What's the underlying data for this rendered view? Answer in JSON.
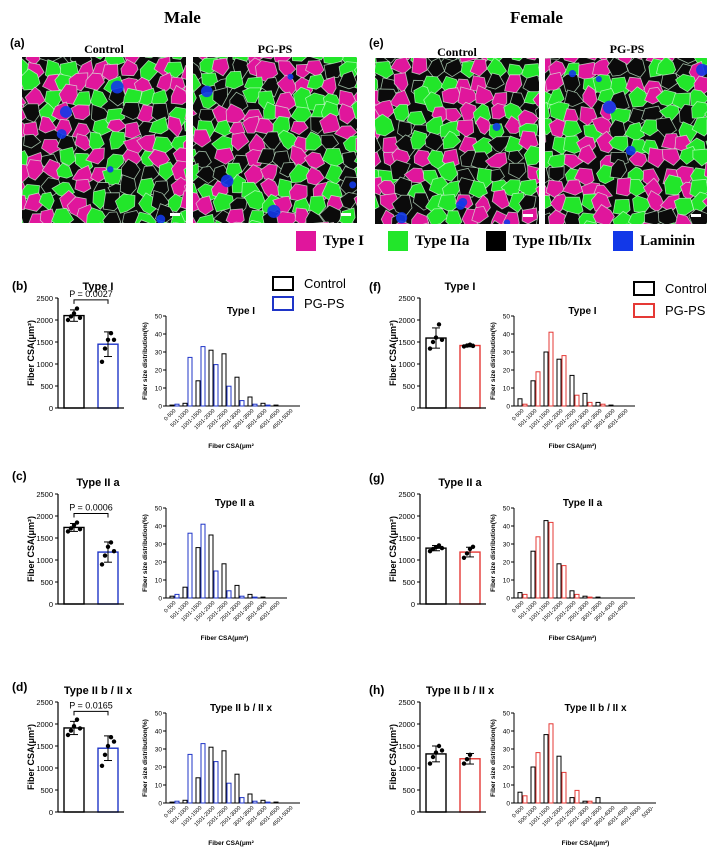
{
  "header": {
    "male": "Male",
    "female": "Female"
  },
  "panels": {
    "a": {
      "label": "(a)",
      "control": "Control",
      "pgps": "PG-PS"
    },
    "e": {
      "label": "(e)",
      "control": "Control",
      "pgps": "PG-PS"
    }
  },
  "fiber_legend": [
    {
      "name": "Type I",
      "color": "#e0169c"
    },
    {
      "name": "Type IIa",
      "color": "#22e62a"
    },
    {
      "name": "Type IIb/IIx",
      "color": "#000000"
    },
    {
      "name": "Laminin",
      "color": "#1238e8"
    }
  ],
  "group_legend": {
    "male": {
      "control": "Control",
      "pgps": "PG-PS",
      "pgps_color": "#1f35c7"
    },
    "female": {
      "control": "Control",
      "pgps": "PG-PS",
      "pgps_color": "#e53935"
    }
  },
  "chart_data": [
    {
      "id": "b",
      "label": "(b)",
      "type": "bar",
      "title": "Type I",
      "ylabel": "Fiber CSA(μm²)",
      "ylim": [
        0,
        2500
      ],
      "yticks": [
        0,
        500,
        1000,
        1500,
        2000,
        2500
      ],
      "categories": [
        "Control",
        "PG-PS"
      ],
      "values": [
        2100,
        1450
      ],
      "errors": [
        130,
        280
      ],
      "pvalue": "P = 0.0027",
      "pgps_color": "#1f35c7",
      "points": [
        [
          2000,
          2080,
          2150,
          2260,
          2050
        ],
        [
          1050,
          1350,
          1550,
          1700,
          1550
        ]
      ]
    },
    {
      "id": "b-hist",
      "type": "bar",
      "title": "Type I",
      "ylabel": "Fiber size distribution(%)",
      "xlabel": "Fiber CSA(μm²",
      "ylim": [
        0,
        50
      ],
      "yticks": [
        0,
        10,
        20,
        30,
        40,
        50
      ],
      "categories": [
        "0-500",
        "501-1000",
        "1001-1500",
        "1501-2000",
        "2001-2500",
        "2501-3000",
        "3001-3500",
        "3501-4000",
        "4001-4500",
        "4501-5000"
      ],
      "series": [
        {
          "name": "Control",
          "values": [
            0.5,
            1.5,
            14,
            31,
            29,
            16,
            5,
            1.5,
            0.5,
            0
          ]
        },
        {
          "name": "PG-PS",
          "values": [
            1,
            27,
            33,
            23,
            11,
            3,
            1,
            0.5,
            0,
            0
          ]
        }
      ],
      "pgps_color": "#1f35c7"
    },
    {
      "id": "c",
      "label": "(c)",
      "type": "bar",
      "title": "Type II a",
      "ylabel": "Fiber CSA(μm²)",
      "ylim": [
        0,
        2500
      ],
      "yticks": [
        0,
        500,
        1000,
        1500,
        2000,
        2500
      ],
      "categories": [
        "Control",
        "PG-PS"
      ],
      "values": [
        1740,
        1180
      ],
      "errors": [
        90,
        230
      ],
      "pvalue": "P = 0.0006",
      "pgps_color": "#1f35c7",
      "points": [
        [
          1650,
          1720,
          1790,
          1850,
          1700
        ],
        [
          900,
          1100,
          1300,
          1400,
          1200
        ]
      ]
    },
    {
      "id": "c-hist",
      "type": "bar",
      "title": "Type II a",
      "ylabel": "Fiber size distribution(%)",
      "xlabel": "Fiber CSA(μm²)",
      "ylim": [
        0,
        50
      ],
      "yticks": [
        0,
        10,
        20,
        30,
        40,
        50
      ],
      "categories": [
        "0-500",
        "501-1000",
        "1001-1500",
        "1501-2000",
        "2001-2500",
        "2501-3000",
        "3001-3500",
        "3501-4000",
        "4001-4500"
      ],
      "series": [
        {
          "name": "Control",
          "values": [
            1,
            6,
            28,
            35,
            19,
            7,
            2,
            0.5,
            0
          ]
        },
        {
          "name": "PG-PS",
          "values": [
            2,
            36,
            41,
            15,
            4,
            1,
            0.5,
            0,
            0
          ]
        }
      ],
      "pgps_color": "#1f35c7"
    },
    {
      "id": "d",
      "label": "(d)",
      "type": "bar",
      "title": "Type II b / II x",
      "ylabel": "Fiber CSA(μm²)",
      "ylim": [
        0,
        2500
      ],
      "yticks": [
        0,
        500,
        1000,
        1500,
        2000,
        2500
      ],
      "categories": [
        "Control",
        "PG-PS"
      ],
      "values": [
        1910,
        1450
      ],
      "errors": [
        150,
        280
      ],
      "pvalue": "P = 0.0165",
      "pgps_color": "#1f35c7",
      "points": [
        [
          1750,
          1850,
          1950,
          2100,
          1900
        ],
        [
          1050,
          1300,
          1500,
          1700,
          1600
        ]
      ]
    },
    {
      "id": "d-hist",
      "type": "bar",
      "title": "Type II b / II x",
      "ylabel": "Fiber size distribution(%)",
      "xlabel": "Fiber CSA(μm²",
      "ylim": [
        0,
        50
      ],
      "yticks": [
        0,
        10,
        20,
        30,
        40,
        50
      ],
      "categories": [
        "0-500",
        "501-1000",
        "1001-1500",
        "1501-2000",
        "2001-2500",
        "2501-3000",
        "3001-3500",
        "3501-4000",
        "4001-4500",
        "4501-5000"
      ],
      "series": [
        {
          "name": "Control",
          "values": [
            0.5,
            1.5,
            14,
            31,
            29,
            16,
            5,
            1.5,
            0.5,
            0
          ]
        },
        {
          "name": "PG-PS",
          "values": [
            1,
            27,
            33,
            23,
            11,
            3,
            1,
            0.5,
            0,
            0
          ]
        }
      ],
      "pgps_color": "#1f35c7"
    },
    {
      "id": "f",
      "label": "(f)",
      "type": "bar",
      "title": "Type I",
      "ylabel": "Fiber CSA(μm²)",
      "ylim": [
        0,
        2500
      ],
      "yticks": [
        0,
        500,
        1000,
        1500,
        2000,
        2500
      ],
      "categories": [
        "Control",
        "PG-PS"
      ],
      "values": [
        1590,
        1420
      ],
      "errors": [
        230,
        30
      ],
      "pvalue": "",
      "pgps_color": "#e53935",
      "points": [
        [
          1350,
          1500,
          1600,
          1900,
          1550
        ],
        [
          1400,
          1420,
          1440,
          1410
        ]
      ]
    },
    {
      "id": "f-hist",
      "type": "bar",
      "title": "Type I",
      "ylabel": "Fiber size distribution(%)",
      "xlabel": "Fiber CSA(μm²)",
      "ylim": [
        0,
        50
      ],
      "yticks": [
        0,
        10,
        20,
        30,
        40,
        50
      ],
      "categories": [
        "0-500",
        "501-1000",
        "1001-1500",
        "1501-2000",
        "2001-2500",
        "2501-3000",
        "3001-3500",
        "3501-4000",
        "4001-4500"
      ],
      "series": [
        {
          "name": "Control",
          "values": [
            4,
            14,
            30,
            26,
            17,
            7,
            2,
            0.5,
            0
          ]
        },
        {
          "name": "PG-PS",
          "values": [
            1,
            19,
            41,
            28,
            6,
            2,
            1,
            0,
            0
          ]
        }
      ],
      "pgps_color": "#e53935"
    },
    {
      "id": "g",
      "label": "(g)",
      "type": "bar",
      "title": "Type II a",
      "ylabel": "Fiber CSA(μm²)",
      "ylim": [
        0,
        2500
      ],
      "yticks": [
        0,
        500,
        1000,
        1500,
        2000,
        2500
      ],
      "categories": [
        "Control",
        "PG-PS"
      ],
      "values": [
        1270,
        1180
      ],
      "errors": [
        60,
        110
      ],
      "pvalue": "",
      "pgps_color": "#e53935",
      "points": [
        [
          1200,
          1250,
          1290,
          1330,
          1270
        ],
        [
          1050,
          1150,
          1250,
          1300
        ]
      ]
    },
    {
      "id": "g-hist",
      "type": "bar",
      "title": "Type II a",
      "ylabel": "Fiber size distribution(%)",
      "xlabel": "Fiber CSA(μm²)",
      "ylim": [
        0,
        50
      ],
      "yticks": [
        0,
        10,
        20,
        30,
        40,
        50
      ],
      "categories": [
        "0-500",
        "501-1000",
        "1001-1500",
        "1501-2000",
        "2001-2500",
        "2501-3000",
        "3001-3500",
        "3501-4000",
        "4001-4500"
      ],
      "series": [
        {
          "name": "Control",
          "values": [
            3,
            26,
            43,
            19,
            4,
            1,
            0.5,
            0,
            0
          ]
        },
        {
          "name": "PG-PS",
          "values": [
            2,
            34,
            42,
            18,
            2,
            0.5,
            0,
            0,
            0
          ]
        }
      ],
      "pgps_color": "#e53935"
    },
    {
      "id": "h",
      "label": "(h)",
      "type": "bar",
      "title": "Type II b / II x",
      "ylabel": "Fiber CSA(μm²)",
      "ylim": [
        0,
        2500
      ],
      "yticks": [
        0,
        500,
        1000,
        1500,
        2000,
        2500
      ],
      "categories": [
        "Control",
        "PG-PS"
      ],
      "values": [
        1320,
        1210
      ],
      "errors": [
        180,
        120
      ],
      "pvalue": "",
      "pgps_color": "#e53935",
      "points": [
        [
          1100,
          1250,
          1350,
          1500,
          1400
        ],
        [
          1100,
          1200,
          1300
        ]
      ]
    },
    {
      "id": "h-hist",
      "type": "bar",
      "title": "Type II b / II x",
      "ylabel": "Fiber size distribution(%)",
      "xlabel": "Fiber CSA(μm²)",
      "ylim": [
        0,
        50
      ],
      "yticks": [
        0,
        10,
        20,
        30,
        40,
        50
      ],
      "categories": [
        "0-500",
        "500-1000",
        "1001-1500",
        "1501-2000",
        "2001-2500",
        "2501-3000",
        "3001-3500",
        "3501-4000",
        "4001-4500",
        "4501-5000",
        "5000-"
      ],
      "series": [
        {
          "name": "Control",
          "values": [
            6,
            20,
            38,
            26,
            3,
            1,
            3,
            0,
            0,
            0,
            0
          ]
        },
        {
          "name": "PG-PS",
          "values": [
            4,
            28,
            44,
            17,
            7,
            1,
            0,
            0,
            0,
            0,
            0
          ]
        }
      ],
      "pgps_color": "#e53935"
    }
  ]
}
